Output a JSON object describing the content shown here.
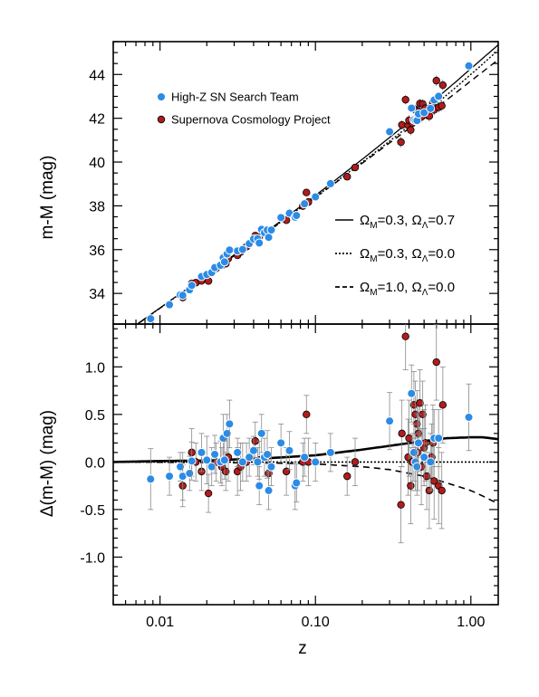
{
  "chart_data": [
    {
      "type": "scatter",
      "panel": "top",
      "ylabel": "m-M (mag)",
      "xlabel": "",
      "xscale": "log",
      "xlim": [
        0.005,
        1.5
      ],
      "ylim": [
        32.6,
        45.5
      ],
      "yticks": [
        34,
        36,
        38,
        40,
        42,
        44
      ],
      "legend": {
        "placement": "top-left",
        "entries": [
          {
            "label": "High-Z SN Search Team",
            "color": "#2b8be6"
          },
          {
            "label": "Supernova Cosmology Project",
            "color": "#b01c1c"
          }
        ]
      },
      "models": [
        {
          "label_parts": [
            "Ω",
            "M",
            "=0.3, Ω",
            "Λ",
            "=0.7"
          ],
          "style": "solid"
        },
        {
          "label_parts": [
            "Ω",
            "M",
            "=0.3, Ω",
            "Λ",
            "=0.0"
          ],
          "style": "dotted"
        },
        {
          "label_parts": [
            "Ω",
            "M",
            "=1.0, Ω",
            "Λ",
            "=0.0"
          ],
          "style": "dashed"
        }
      ]
    },
    {
      "type": "scatter",
      "panel": "bottom",
      "ylabel": "Δ(m-M) (mag)",
      "xlabel": "z",
      "xscale": "log",
      "xlim": [
        0.005,
        1.5
      ],
      "ylim": [
        -1.5,
        1.45
      ],
      "yticks": [
        -1.0,
        -0.5,
        0.0,
        0.5,
        1.0
      ],
      "ytick_labels": [
        "-1.0",
        "-0.5",
        "0.0",
        "0.5",
        "1.0"
      ],
      "xticks": [
        0.01,
        0.1,
        1.0
      ],
      "xtick_labels": [
        "0.01",
        "0.10",
        "1.00"
      ],
      "series": [
        {
          "name": "High-Z SN Search Team",
          "color": "#2b8be6",
          "points": [
            [
              0.0087,
              -0.18,
              0.32
            ],
            [
              0.0115,
              -0.15,
              0.2
            ],
            [
              0.0135,
              -0.05,
              0.15
            ],
            [
              0.014,
              -0.15,
              0.25
            ],
            [
              0.0155,
              -0.12,
              0.18
            ],
            [
              0.016,
              0.01,
              0.2
            ],
            [
              0.0185,
              0.1,
              0.2
            ],
            [
              0.02,
              0.02,
              0.25
            ],
            [
              0.0215,
              -0.05,
              0.2
            ],
            [
              0.0225,
              0.08,
              0.2
            ],
            [
              0.0245,
              0.0,
              0.22
            ],
            [
              0.0255,
              0.25,
              0.25
            ],
            [
              0.026,
              0.02,
              0.2
            ],
            [
              0.027,
              0.3,
              0.2
            ],
            [
              0.028,
              0.4,
              0.25
            ],
            [
              0.0315,
              0.1,
              0.15
            ],
            [
              0.034,
              0.0,
              0.2
            ],
            [
              0.0375,
              0.05,
              0.2
            ],
            [
              0.04,
              0.12,
              0.15
            ],
            [
              0.0425,
              0.0,
              0.15
            ],
            [
              0.0435,
              -0.25,
              0.2
            ],
            [
              0.045,
              0.3,
              0.2
            ],
            [
              0.047,
              0.05,
              0.2
            ],
            [
              0.049,
              0.08,
              0.25
            ],
            [
              0.05,
              -0.3,
              0.2
            ],
            [
              0.052,
              -0.05,
              0.2
            ],
            [
              0.06,
              0.2,
              0.2
            ],
            [
              0.068,
              0.12,
              0.2
            ],
            [
              0.074,
              -0.25,
              0.25
            ],
            [
              0.0755,
              -0.22,
              0.2
            ],
            [
              0.085,
              0.05,
              0.2
            ],
            [
              0.1,
              0.0,
              0.2
            ],
            [
              0.125,
              0.1,
              0.2
            ],
            [
              0.3,
              0.43,
              0.3
            ],
            [
              0.415,
              0.72,
              0.3
            ],
            [
              0.43,
              0.1,
              0.3
            ],
            [
              0.44,
              0.0,
              0.3
            ],
            [
              0.45,
              -0.05,
              0.3
            ],
            [
              0.46,
              0.2,
              0.3
            ],
            [
              0.5,
              0.05,
              0.3
            ],
            [
              0.55,
              0.0,
              0.3
            ],
            [
              0.58,
              0.25,
              0.3
            ],
            [
              0.62,
              0.25,
              0.3
            ],
            [
              0.97,
              0.47,
              0.35
            ]
          ]
        },
        {
          "name": "Supernova Cosmology Project",
          "color": "#b01c1c",
          "points": [
            [
              0.014,
              -0.25,
              0.22
            ],
            [
              0.016,
              0.1,
              0.25
            ],
            [
              0.017,
              0.0,
              0.2
            ],
            [
              0.0185,
              -0.1,
              0.2
            ],
            [
              0.0205,
              -0.33,
              0.2
            ],
            [
              0.023,
              0.0,
              0.2
            ],
            [
              0.025,
              -0.05,
              0.2
            ],
            [
              0.0265,
              -0.1,
              0.2
            ],
            [
              0.0275,
              0.05,
              0.25
            ],
            [
              0.0315,
              -0.1,
              0.25
            ],
            [
              0.033,
              -0.05,
              0.25
            ],
            [
              0.036,
              0.0,
              0.2
            ],
            [
              0.041,
              0.22,
              0.2
            ],
            [
              0.0435,
              0.02,
              0.2
            ],
            [
              0.05,
              -0.12,
              0.2
            ],
            [
              0.065,
              -0.1,
              0.25
            ],
            [
              0.083,
              0.0,
              0.2
            ],
            [
              0.0875,
              0.5,
              0.2
            ],
            [
              0.09,
              0.0,
              0.25
            ],
            [
              0.16,
              -0.15,
              0.2
            ],
            [
              0.18,
              0.0,
              0.25
            ],
            [
              0.355,
              -0.45,
              0.4
            ],
            [
              0.36,
              0.3,
              0.35
            ],
            [
              0.38,
              1.32,
              0.35
            ],
            [
              0.395,
              0.05,
              0.4
            ],
            [
              0.4,
              0.25,
              0.4
            ],
            [
              0.41,
              -0.25,
              0.4
            ],
            [
              0.42,
              0.0,
              0.3
            ],
            [
              0.43,
              0.6,
              0.35
            ],
            [
              0.44,
              0.5,
              0.35
            ],
            [
              0.45,
              0.4,
              0.35
            ],
            [
              0.455,
              0.1,
              0.4
            ],
            [
              0.46,
              0.3,
              0.35
            ],
            [
              0.47,
              0.62,
              0.35
            ],
            [
              0.48,
              -0.05,
              0.4
            ],
            [
              0.49,
              0.5,
              0.35
            ],
            [
              0.5,
              0.15,
              0.4
            ],
            [
              0.51,
              0.2,
              0.4
            ],
            [
              0.52,
              -0.15,
              0.35
            ],
            [
              0.54,
              -0.3,
              0.4
            ],
            [
              0.56,
              0.05,
              0.35
            ],
            [
              0.57,
              0.2,
              0.4
            ],
            [
              0.58,
              -0.2,
              0.4
            ],
            [
              0.6,
              1.05,
              0.4
            ],
            [
              0.62,
              -0.25,
              0.4
            ],
            [
              0.65,
              -0.3,
              0.4
            ],
            [
              0.66,
              0.6,
              0.4
            ]
          ]
        }
      ],
      "models": [
        {
          "label": "ΩM=0.3, ΩΛ=0.7",
          "style": "solid",
          "x": [
            0.005,
            0.01,
            0.02,
            0.05,
            0.1,
            0.2,
            0.3,
            0.5,
            0.7,
            1.0,
            1.2,
            1.5
          ],
          "y": [
            0.0,
            0.01,
            0.015,
            0.04,
            0.07,
            0.13,
            0.17,
            0.22,
            0.25,
            0.26,
            0.26,
            0.24
          ]
        },
        {
          "label": "ΩM=0.3, ΩΛ=0.0",
          "style": "dotted",
          "x": [
            0.005,
            1.5
          ],
          "y": [
            0.0,
            0.0
          ]
        },
        {
          "label": "ΩM=1.0, ΩΛ=0.0",
          "style": "dashed",
          "x": [
            0.005,
            0.05,
            0.1,
            0.2,
            0.3,
            0.5,
            0.7,
            1.0,
            1.2,
            1.5
          ],
          "y": [
            0.0,
            -0.01,
            -0.02,
            -0.05,
            -0.08,
            -0.15,
            -0.22,
            -0.3,
            -0.36,
            -0.44
          ]
        }
      ]
    }
  ]
}
